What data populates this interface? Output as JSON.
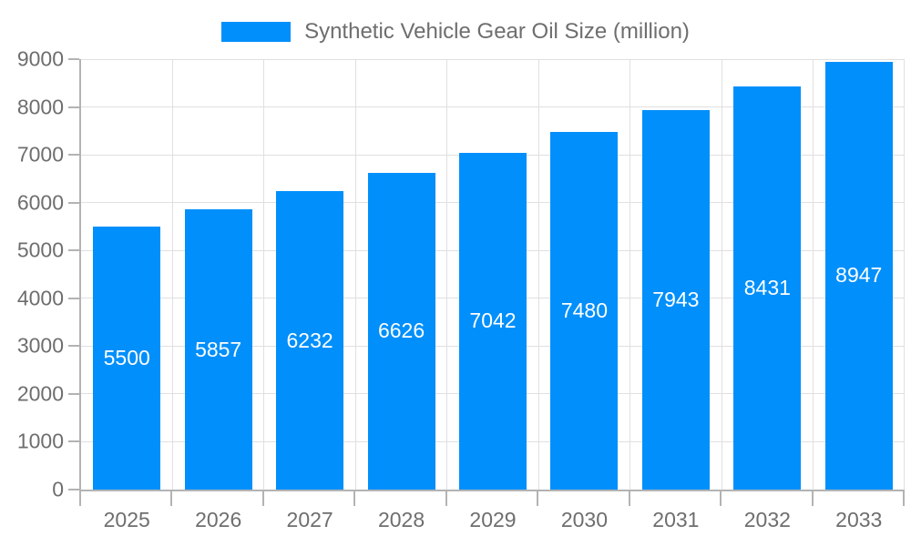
{
  "legend": {
    "label": "Synthetic Vehicle Gear Oil Size (million)",
    "swatch_color": "#008FFB"
  },
  "chart_data": {
    "type": "bar",
    "title": "Synthetic Vehicle Gear Oil Size (million)",
    "series_name": "Synthetic Vehicle Gear Oil Size (million)",
    "categories": [
      "2025",
      "2026",
      "2027",
      "2028",
      "2029",
      "2030",
      "2031",
      "2032",
      "2033"
    ],
    "values": [
      5500,
      5857,
      6232,
      6626,
      7042,
      7480,
      7943,
      8431,
      8947
    ],
    "xlabel": "",
    "ylabel": "",
    "ylim": [
      0,
      9000
    ],
    "ytick_step": 1000,
    "yticks": [
      0,
      1000,
      2000,
      3000,
      4000,
      5000,
      6000,
      7000,
      8000,
      9000
    ],
    "grid": true,
    "legend_position": "top",
    "value_labels": "inside-center",
    "colors": {
      "bar": "#008FFB",
      "value_label": "#ffffff",
      "axis_text": "#6e6e6e",
      "grid_line": "#e0e0e0",
      "axis_line": "#b3b3b3",
      "background": "#ffffff"
    }
  }
}
